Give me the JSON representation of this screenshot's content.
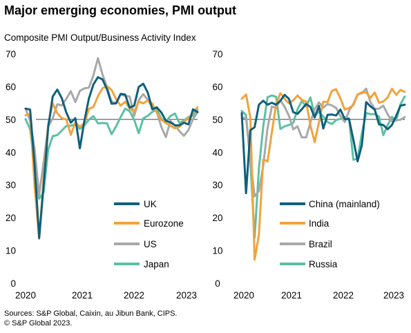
{
  "title": "Major emerging economies, PMI output",
  "subtitle": "Composite PMI Output/Business  Activity Index",
  "source": [
    "Sources: S&P Global, Caixin, au Jibun Bank, CIPS.",
    "© S&P Global 2023."
  ],
  "colors": {
    "UK": "#0f5f7c",
    "Eurozone": "#f2a23b",
    "US": "#a8a8a8",
    "Japan": "#5cc0a3",
    "China (mainland)": "#0f5f7c",
    "India": "#f2a23b",
    "Brazil": "#a8a8a8",
    "Russia": "#5cc0a3"
  },
  "chart_data": [
    {
      "type": "line",
      "title": "Major emerging economies, PMI output",
      "ylabel": "Composite PMI Output/Business  Activity Index",
      "ylim": [
        0,
        70
      ],
      "yticks": [
        "0",
        "10",
        "20",
        "30",
        "40",
        "50",
        "60",
        "70"
      ],
      "xticks": [
        "2020",
        "2021",
        "2022",
        "2023"
      ],
      "reference_line": 50,
      "legend_position": "bottom-right",
      "x_start": "2020-01",
      "x_step": "month",
      "series": [
        {
          "name": "UK",
          "values": [
            53.3,
            53.0,
            36.0,
            13.8,
            30.0,
            47.7,
            57.0,
            59.1,
            56.5,
            52.1,
            49.0,
            50.4,
            41.2,
            49.6,
            56.4,
            60.7,
            62.9,
            62.2,
            59.2,
            54.8,
            54.9,
            57.8,
            57.6,
            53.6,
            54.2,
            59.9,
            60.9,
            58.2,
            53.1,
            53.7,
            52.1,
            49.6,
            49.1,
            48.2,
            48.2,
            49.0,
            48.5,
            53.1,
            52.2
          ]
        },
        {
          "name": "Eurozone",
          "values": [
            51.3,
            51.6,
            29.7,
            13.6,
            31.9,
            48.5,
            54.9,
            51.9,
            50.4,
            50.0,
            45.3,
            49.1,
            47.8,
            48.8,
            53.2,
            53.8,
            57.1,
            59.5,
            60.2,
            59.0,
            56.2,
            54.2,
            55.4,
            53.3,
            52.3,
            55.5,
            54.9,
            55.8,
            54.8,
            52.0,
            49.9,
            48.9,
            48.1,
            47.3,
            47.8,
            49.3,
            50.3,
            52.0,
            53.7
          ]
        },
        {
          "name": "US",
          "values": [
            53.3,
            49.6,
            40.9,
            27.0,
            37.0,
            47.9,
            50.3,
            54.6,
            54.3,
            56.3,
            58.6,
            55.3,
            58.7,
            59.5,
            59.7,
            63.5,
            68.7,
            63.7,
            59.9,
            55.4,
            55.0,
            57.6,
            57.2,
            57.0,
            51.1,
            55.9,
            57.7,
            56.0,
            53.6,
            52.3,
            47.7,
            44.6,
            49.5,
            48.2,
            46.4,
            45.0,
            46.8,
            50.1,
            52.3
          ]
        },
        {
          "name": "Japan",
          "values": [
            50.1,
            47.0,
            36.2,
            25.8,
            27.8,
            40.8,
            44.9,
            45.2,
            46.6,
            48.0,
            48.1,
            48.5,
            47.1,
            48.2,
            49.9,
            51.0,
            48.8,
            48.9,
            48.8,
            45.5,
            47.9,
            50.7,
            53.3,
            52.5,
            49.9,
            45.8,
            50.3,
            51.1,
            52.3,
            53.0,
            50.2,
            49.4,
            51.0,
            51.8,
            48.9,
            49.7,
            50.7,
            51.1,
            52.9
          ]
        }
      ]
    },
    {
      "type": "line",
      "ylim": [
        0,
        70
      ],
      "yticks": [
        "0",
        "10",
        "20",
        "30",
        "40",
        "50",
        "60",
        "70"
      ],
      "xticks": [
        "2020",
        "2021",
        "2022",
        "2023"
      ],
      "reference_line": 50,
      "legend_position": "bottom-right",
      "x_start": "2020-01",
      "x_step": "month",
      "series": [
        {
          "name": "China (mainland)",
          "values": [
            51.9,
            27.5,
            46.7,
            47.6,
            54.5,
            55.7,
            54.5,
            55.1,
            54.5,
            55.7,
            57.5,
            56.3,
            52.2,
            51.7,
            53.1,
            54.7,
            53.8,
            50.6,
            54.1,
            47.2,
            51.4,
            51.5,
            51.2,
            53.0,
            50.1,
            50.1,
            43.9,
            37.2,
            42.2,
            55.3,
            54.0,
            53.0,
            48.5,
            48.3,
            47.0,
            48.3,
            51.1,
            54.2,
            54.5
          ]
        },
        {
          "name": "India",
          "values": [
            56.3,
            57.6,
            50.6,
            7.2,
            14.8,
            37.8,
            37.2,
            46.0,
            54.6,
            58.0,
            56.3,
            54.9,
            55.8,
            57.3,
            56.0,
            55.4,
            48.1,
            43.1,
            49.2,
            55.4,
            55.3,
            58.7,
            59.2,
            56.4,
            53.0,
            53.5,
            54.3,
            57.6,
            58.3,
            58.2,
            56.6,
            58.2,
            55.1,
            55.5,
            56.7,
            59.4,
            57.5,
            59.0,
            58.4
          ]
        },
        {
          "name": "Brazil",
          "values": [
            50.3,
            50.6,
            37.6,
            26.5,
            28.1,
            35.9,
            47.3,
            53.9,
            53.6,
            55.9,
            53.8,
            51.1,
            47.0,
            47.9,
            44.5,
            44.5,
            49.1,
            53.1,
            55.2,
            53.6,
            54.7,
            54.3,
            53.5,
            51.0,
            49.2,
            52.6,
            54.7,
            57.6,
            58.0,
            59.4,
            55.3,
            53.2,
            53.3,
            54.2,
            51.6,
            49.4,
            49.7,
            49.9,
            50.7
          ]
        },
        {
          "name": "Russia",
          "values": [
            52.6,
            51.3,
            37.2,
            13.9,
            35.0,
            47.9,
            56.8,
            57.3,
            56.9,
            47.1,
            47.9,
            48.3,
            48.9,
            53.1,
            55.6,
            54.0,
            56.7,
            51.3,
            52.3,
            50.9,
            49.2,
            48.6,
            49.8,
            50.2,
            50.7,
            50.3,
            37.7,
            38.0,
            45.8,
            52.0,
            51.6,
            51.6,
            50.9,
            45.2,
            48.3,
            50.8,
            49.7,
            54.7,
            57.0
          ]
        }
      ]
    }
  ]
}
